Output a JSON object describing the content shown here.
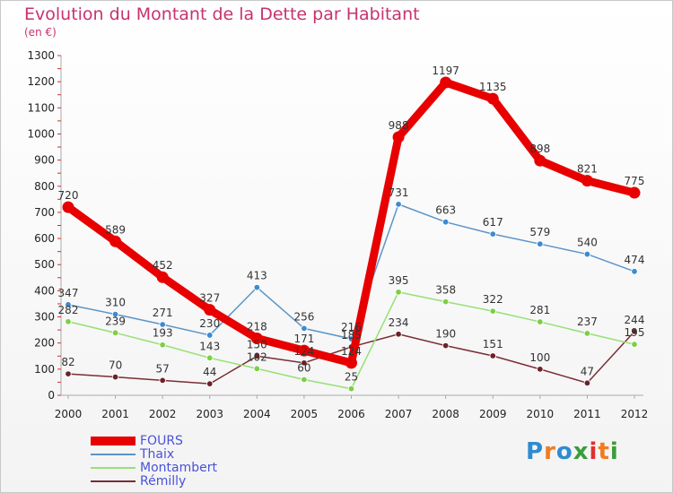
{
  "header": {
    "title": "Evolution du Montant de la Dette par Habitant",
    "subtitle": "(en €)"
  },
  "logo": {
    "text": "Proxiti",
    "colors": [
      "#2e8bd0",
      "#f07c1e",
      "#2e8bd0",
      "#3a9d3a",
      "#e03030",
      "#f07c1e",
      "#3a9d3a"
    ]
  },
  "colors": {
    "title": "#c8326e",
    "axis_tick": "#d03030",
    "legend_text": "#4a52d8"
  },
  "chart_data": {
    "type": "line",
    "title": "Evolution du Montant de la Dette par Habitant",
    "subtitle": "(en €)",
    "x": [
      "2000",
      "2001",
      "2002",
      "2003",
      "2004",
      "2005",
      "2006",
      "2007",
      "2008",
      "2009",
      "2010",
      "2011",
      "2012"
    ],
    "ylim": [
      0,
      1300
    ],
    "yticks": [
      "0",
      "100",
      "200",
      "300",
      "400",
      "500",
      "600",
      "700",
      "800",
      "900",
      "1000",
      "1100",
      "1200",
      "1300"
    ],
    "grid": false,
    "legend_position": "bottom-left",
    "series": [
      {
        "name": "FOURS",
        "color": "#e80000",
        "values": [
          720,
          589,
          452,
          327,
          218,
          171,
          124,
          988,
          1197,
          1135,
          898,
          821,
          775
        ],
        "labels": [
          "720",
          "589",
          "452",
          "327",
          "218",
          "171",
          "124",
          "988",
          "1197",
          "1135",
          "898",
          "821",
          "775"
        ]
      },
      {
        "name": "Thaix",
        "color": "#5b95c8",
        "marker": "#3d8ad2",
        "values": [
          347,
          310,
          271,
          230,
          413,
          256,
          216,
          731,
          663,
          617,
          579,
          540,
          474
        ],
        "labels": [
          "347",
          "310",
          "271",
          "230",
          "413",
          "256",
          "216",
          "731",
          "663",
          "617",
          "579",
          "540",
          "474"
        ]
      },
      {
        "name": "Montambert",
        "color": "#96e074",
        "marker": "#7ccf45",
        "values": [
          282,
          239,
          193,
          143,
          102,
          60,
          25,
          395,
          358,
          322,
          281,
          237,
          195
        ],
        "labels": [
          "282",
          "239",
          "193",
          "143",
          "102",
          "60",
          "25",
          "395",
          "358",
          "322",
          "281",
          "237",
          "195"
        ]
      },
      {
        "name": "Rémilly",
        "color": "#7a2d35",
        "marker": "#6b2228",
        "values": [
          82,
          70,
          57,
          44,
          150,
          124,
          185,
          234,
          190,
          151,
          100,
          47,
          244
        ],
        "labels": [
          "82",
          "70",
          "57",
          "44",
          "150",
          "124",
          "185",
          "234",
          "190",
          "151",
          "100",
          "47",
          "244"
        ]
      }
    ]
  }
}
